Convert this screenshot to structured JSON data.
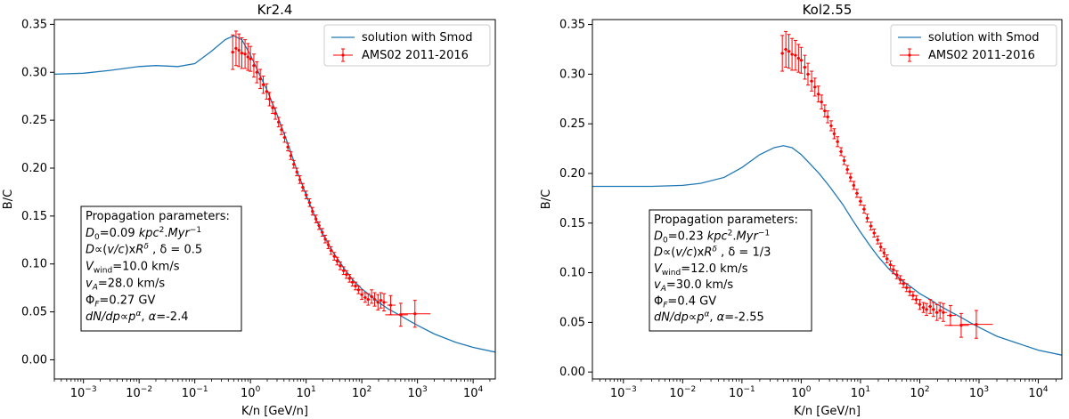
{
  "chart_data": [
    {
      "type": "line",
      "title": "Kr2.4",
      "xlabel": "K/n [GeV/n]",
      "ylabel": "B/C",
      "xscale": "log",
      "xlim": [
        0.0003,
        25000
      ],
      "ylim": [
        -0.02,
        0.355
      ],
      "x_ticks": [
        {
          "value": 0.001,
          "base": "10",
          "exp": "−3"
        },
        {
          "value": 0.01,
          "base": "10",
          "exp": "−2"
        },
        {
          "value": 0.1,
          "base": "10",
          "exp": "−1"
        },
        {
          "value": 1,
          "base": "10",
          "exp": "0"
        },
        {
          "value": 10,
          "base": "10",
          "exp": "1"
        },
        {
          "value": 100,
          "base": "10",
          "exp": "2"
        },
        {
          "value": 1000,
          "base": "10",
          "exp": "3"
        },
        {
          "value": 10000,
          "base": "10",
          "exp": "4"
        }
      ],
      "y_ticks": [
        "0.00",
        "0.05",
        "0.10",
        "0.15",
        "0.20",
        "0.25",
        "0.30",
        "0.35"
      ],
      "legend": {
        "position": "top-right",
        "line_label": "solution with Smod",
        "data_label": "AMS02 2011-2016"
      },
      "model": {
        "name": "solution with Smod",
        "color": "#1f77b4",
        "x": [
          0.0003,
          0.001,
          0.003,
          0.01,
          0.02,
          0.05,
          0.1,
          0.2,
          0.35,
          0.5,
          0.7,
          1,
          1.5,
          2,
          3,
          5,
          7,
          10,
          15,
          20,
          30,
          50,
          70,
          100,
          150,
          200,
          300,
          500,
          700,
          1000,
          2000,
          5000,
          10000,
          25000
        ],
        "y": [
          0.298,
          0.299,
          0.302,
          0.306,
          0.307,
          0.306,
          0.309,
          0.322,
          0.334,
          0.338,
          0.334,
          0.318,
          0.296,
          0.281,
          0.256,
          0.221,
          0.196,
          0.172,
          0.147,
          0.131,
          0.113,
          0.094,
          0.083,
          0.074,
          0.066,
          0.06,
          0.053,
          0.046,
          0.041,
          0.036,
          0.027,
          0.018,
          0.013,
          0.008
        ]
      },
      "data": {
        "name": "AMS02 2011-2016",
        "color": "#ff0000",
        "x": [
          0.48,
          0.55,
          0.62,
          0.7,
          0.8,
          0.9,
          1.0,
          1.15,
          1.3,
          1.5,
          1.7,
          1.95,
          2.2,
          2.5,
          2.8,
          3.2,
          3.6,
          4.1,
          4.7,
          5.3,
          6.0,
          6.8,
          7.7,
          8.7,
          10,
          11.5,
          13,
          15,
          17,
          19.5,
          22,
          25,
          28,
          32,
          36,
          41,
          47,
          53,
          60,
          68,
          77,
          87,
          100,
          115,
          130,
          150,
          170,
          195,
          220,
          250,
          330,
          500,
          900
        ],
        "y": [
          0.321,
          0.325,
          0.323,
          0.32,
          0.319,
          0.316,
          0.314,
          0.307,
          0.3,
          0.293,
          0.287,
          0.28,
          0.272,
          0.263,
          0.257,
          0.248,
          0.24,
          0.232,
          0.222,
          0.213,
          0.204,
          0.196,
          0.188,
          0.18,
          0.172,
          0.164,
          0.155,
          0.147,
          0.14,
          0.133,
          0.126,
          0.12,
          0.114,
          0.108,
          0.103,
          0.098,
          0.093,
          0.089,
          0.085,
          0.081,
          0.077,
          0.073,
          0.068,
          0.065,
          0.063,
          0.066,
          0.063,
          0.06,
          0.062,
          0.06,
          0.057,
          0.047,
          0.048
        ],
        "yerr": [
          0.018,
          0.018,
          0.017,
          0.016,
          0.015,
          0.014,
          0.013,
          0.012,
          0.011,
          0.01,
          0.009,
          0.008,
          0.007,
          0.006,
          0.006,
          0.005,
          0.005,
          0.005,
          0.004,
          0.004,
          0.004,
          0.004,
          0.004,
          0.004,
          0.004,
          0.004,
          0.004,
          0.004,
          0.004,
          0.004,
          0.004,
          0.004,
          0.004,
          0.004,
          0.004,
          0.004,
          0.004,
          0.004,
          0.004,
          0.004,
          0.004,
          0.004,
          0.005,
          0.005,
          0.006,
          0.007,
          0.007,
          0.008,
          0.008,
          0.009,
          0.01,
          0.012,
          0.014
        ]
      },
      "textbox": {
        "lines": [
          "Propagation parameters:",
          "D0=0.09 kpc2.Myr−1",
          "D∝(v/c)xRδ , δ = 0.5",
          "Vwind=10.0 km/s",
          "vA=28.0 km/s",
          "ΦF=0.27 GV",
          "dN/dp∝pα, α=-2.4"
        ],
        "D0": "0.09",
        "delta": "0.5",
        "Vwind": "10.0 km/s",
        "vA": "28.0 km/s",
        "PhiF": "0.27 GV",
        "alpha": "-2.4"
      }
    },
    {
      "type": "line",
      "title": "Kol2.55",
      "xlabel": "K/n [GeV/n]",
      "ylabel": "B/C",
      "xscale": "log",
      "xlim": [
        0.0003,
        25000
      ],
      "ylim": [
        -0.007,
        0.355
      ],
      "x_ticks": [
        {
          "value": 0.001,
          "base": "10",
          "exp": "−3"
        },
        {
          "value": 0.01,
          "base": "10",
          "exp": "−2"
        },
        {
          "value": 0.1,
          "base": "10",
          "exp": "−1"
        },
        {
          "value": 1,
          "base": "10",
          "exp": "0"
        },
        {
          "value": 10,
          "base": "10",
          "exp": "1"
        },
        {
          "value": 100,
          "base": "10",
          "exp": "2"
        },
        {
          "value": 1000,
          "base": "10",
          "exp": "3"
        },
        {
          "value": 10000,
          "base": "10",
          "exp": "4"
        }
      ],
      "y_ticks": [
        "0.00",
        "0.05",
        "0.10",
        "0.15",
        "0.20",
        "0.25",
        "0.30",
        "0.35"
      ],
      "legend": {
        "position": "top-right",
        "line_label": "solution with Smod",
        "data_label": "AMS02 2011-2016"
      },
      "model": {
        "name": "solution with Smod",
        "color": "#1f77b4",
        "x": [
          0.0003,
          0.001,
          0.003,
          0.01,
          0.02,
          0.05,
          0.1,
          0.2,
          0.35,
          0.5,
          0.7,
          1,
          1.5,
          2,
          3,
          5,
          7,
          10,
          15,
          20,
          30,
          50,
          70,
          100,
          150,
          200,
          300,
          500,
          700,
          1000,
          2000,
          5000,
          10000,
          25000
        ],
        "y": [
          0.187,
          0.187,
          0.187,
          0.188,
          0.19,
          0.196,
          0.206,
          0.219,
          0.226,
          0.228,
          0.226,
          0.219,
          0.208,
          0.2,
          0.187,
          0.169,
          0.155,
          0.141,
          0.126,
          0.116,
          0.104,
          0.092,
          0.086,
          0.079,
          0.073,
          0.068,
          0.062,
          0.055,
          0.05,
          0.045,
          0.036,
          0.028,
          0.022,
          0.017
        ]
      },
      "data": {
        "name": "AMS02 2011-2016",
        "color": "#ff0000",
        "x": [
          0.48,
          0.55,
          0.62,
          0.7,
          0.8,
          0.9,
          1.0,
          1.15,
          1.3,
          1.5,
          1.7,
          1.95,
          2.2,
          2.5,
          2.8,
          3.2,
          3.6,
          4.1,
          4.7,
          5.3,
          6.0,
          6.8,
          7.7,
          8.7,
          10,
          11.5,
          13,
          15,
          17,
          19.5,
          22,
          25,
          28,
          32,
          36,
          41,
          47,
          53,
          60,
          68,
          77,
          87,
          100,
          115,
          130,
          150,
          170,
          195,
          220,
          250,
          330,
          500,
          900
        ],
        "y": [
          0.321,
          0.325,
          0.323,
          0.32,
          0.319,
          0.316,
          0.314,
          0.307,
          0.3,
          0.293,
          0.287,
          0.28,
          0.272,
          0.263,
          0.257,
          0.248,
          0.24,
          0.232,
          0.222,
          0.213,
          0.204,
          0.196,
          0.188,
          0.18,
          0.172,
          0.164,
          0.155,
          0.147,
          0.14,
          0.133,
          0.126,
          0.12,
          0.114,
          0.108,
          0.103,
          0.098,
          0.093,
          0.089,
          0.085,
          0.081,
          0.077,
          0.073,
          0.068,
          0.065,
          0.063,
          0.066,
          0.063,
          0.06,
          0.062,
          0.06,
          0.057,
          0.047,
          0.048
        ],
        "yerr": [
          0.018,
          0.018,
          0.017,
          0.016,
          0.015,
          0.014,
          0.013,
          0.012,
          0.011,
          0.01,
          0.009,
          0.008,
          0.007,
          0.006,
          0.006,
          0.005,
          0.005,
          0.005,
          0.004,
          0.004,
          0.004,
          0.004,
          0.004,
          0.004,
          0.004,
          0.004,
          0.004,
          0.004,
          0.004,
          0.004,
          0.004,
          0.004,
          0.004,
          0.004,
          0.004,
          0.004,
          0.004,
          0.004,
          0.004,
          0.004,
          0.004,
          0.004,
          0.005,
          0.005,
          0.006,
          0.007,
          0.007,
          0.008,
          0.008,
          0.009,
          0.01,
          0.012,
          0.014
        ]
      },
      "textbox": {
        "lines": [
          "Propagation parameters:",
          "D0=0.23 kpc2.Myr−1",
          "D∝(v/c)xRδ , δ = 1/3",
          "Vwind=12.0 km/s",
          "vA=30.0 km/s",
          "ΦF=0.4 GV",
          "dN/dp∝pα, α=-2.55"
        ],
        "D0": "0.23",
        "delta": "1/3",
        "Vwind": "12.0 km/s",
        "vA": "30.0 km/s",
        "PhiF": "0.4 GV",
        "alpha": "-2.55"
      }
    }
  ]
}
